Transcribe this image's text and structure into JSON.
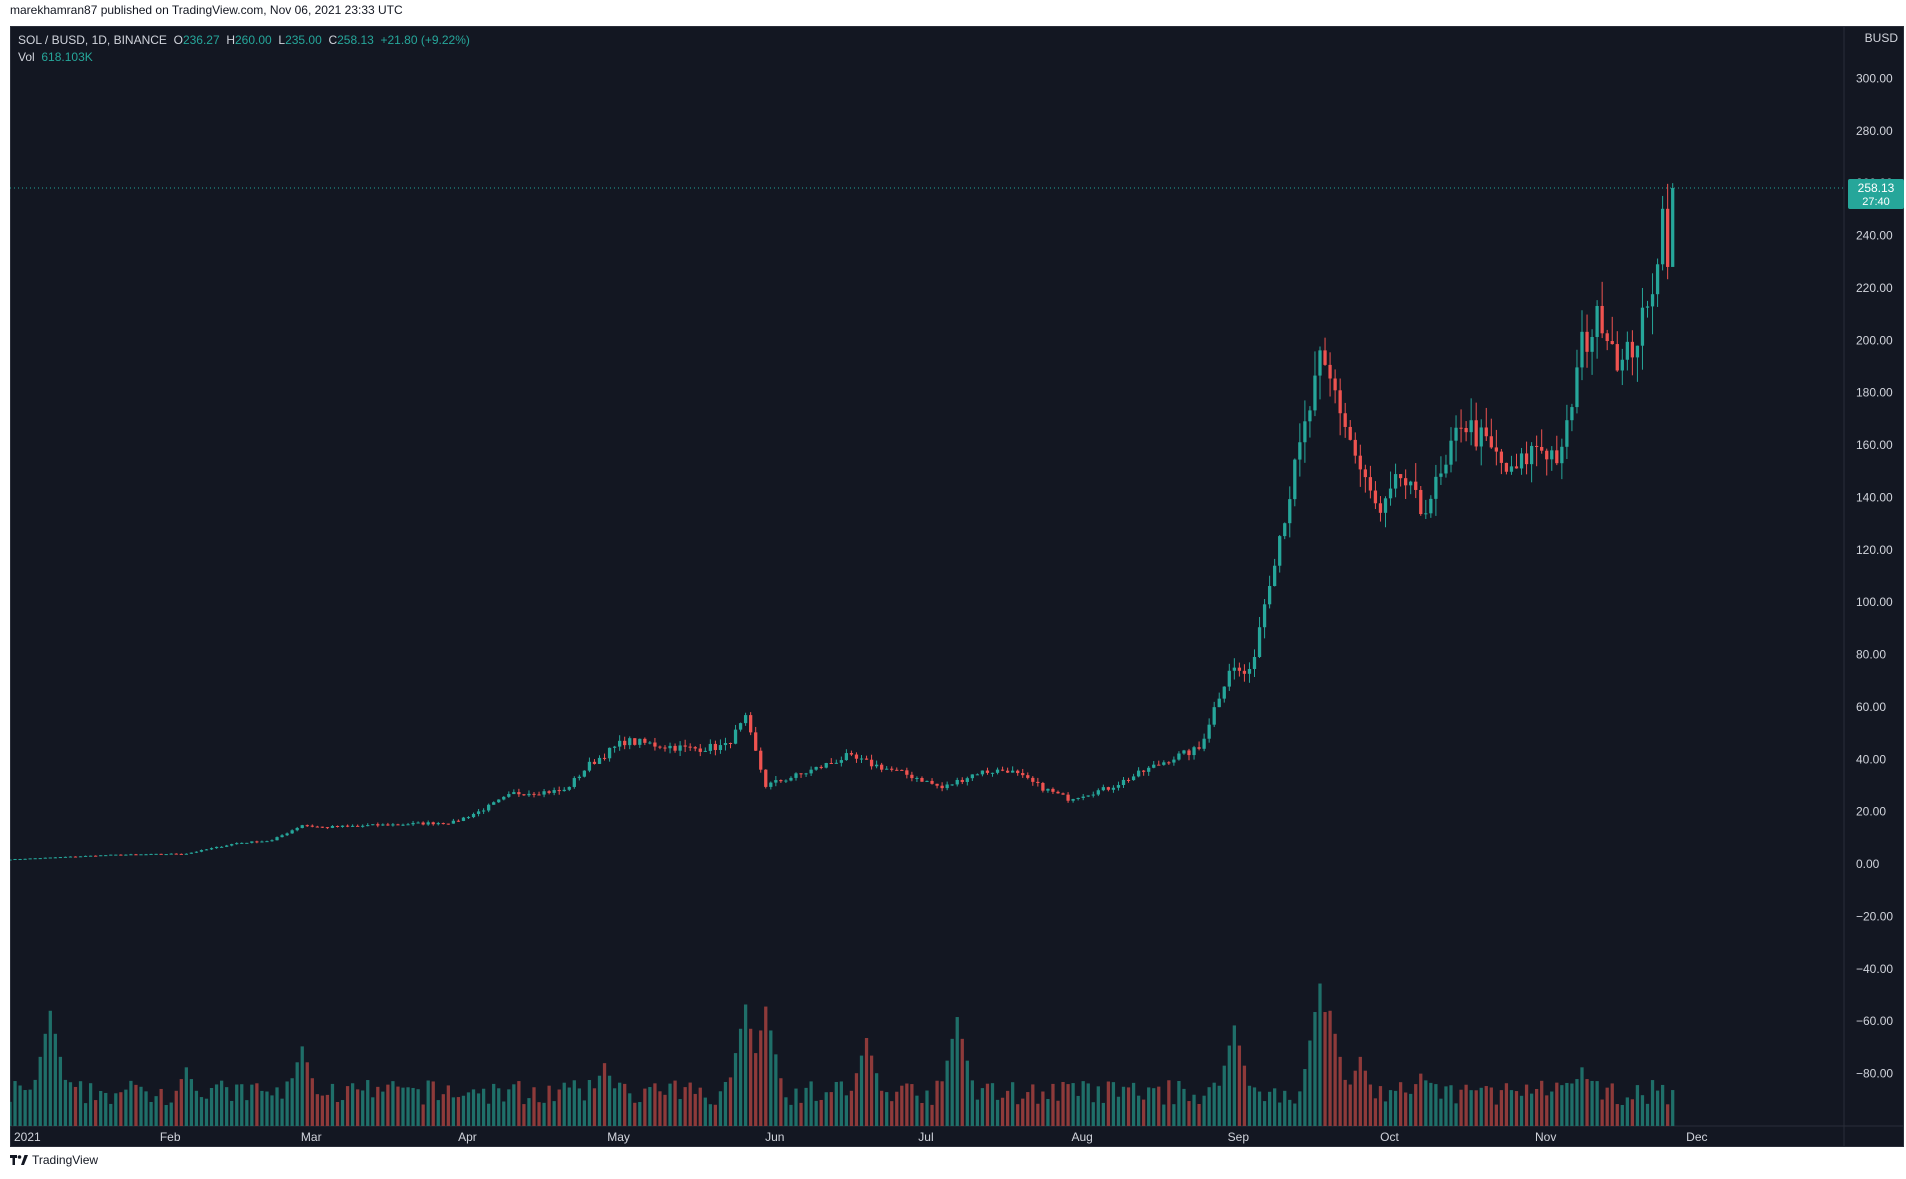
{
  "header": {
    "published": "marekhamran87 published on TradingView.com, Nov 06, 2021 23:33 UTC"
  },
  "legend": {
    "symbol": "SOL / BUSD, 1D, BINANCE",
    "o_label": "O",
    "o": "236.27",
    "h_label": "H",
    "h": "260.00",
    "l_label": "L",
    "l": "235.00",
    "c_label": "C",
    "c": "258.13",
    "change": "+21.80 (+9.22%)",
    "vol_label": "Vol",
    "vol": "618.103K"
  },
  "price_badge": {
    "price": "258.13",
    "countdown": "27:40"
  },
  "currency": "BUSD",
  "footer": {
    "brand": "TradingView"
  },
  "colors": {
    "up": "#26a69a",
    "down": "#ef5350",
    "up_vol": "#1f6f69",
    "down_vol": "#8e3a3a",
    "bg": "#131722",
    "text": "#d1d4dc"
  },
  "chart_data": {
    "type": "candlestick",
    "symbol": "SOL / BUSD",
    "interval": "1D",
    "exchange": "BINANCE",
    "ylim": [
      -100,
      320
    ],
    "y_ticks": [
      300,
      280,
      260,
      240,
      220,
      200,
      180,
      160,
      140,
      120,
      100,
      80,
      60,
      40,
      20,
      0,
      -20,
      -40,
      -60,
      -80
    ],
    "y_tick_labels": [
      "300.00",
      "280.00",
      "260.00",
      "240.00",
      "220.00",
      "200.00",
      "180.00",
      "160.00",
      "140.00",
      "120.00",
      "100.00",
      "80.00",
      "60.00",
      "40.00",
      "20.00",
      "0.00",
      "−20.00",
      "−40.00",
      "−60.00",
      "−80.00"
    ],
    "x_ticks": [
      "2021",
      "Feb",
      "Mar",
      "Apr",
      "May",
      "Jun",
      "Jul",
      "Aug",
      "Sep",
      "Oct",
      "Nov",
      "Dec"
    ],
    "x_tick_days": [
      0,
      31,
      59,
      90,
      120,
      151,
      181,
      212,
      243,
      273,
      304,
      334
    ],
    "x_range_days": [
      0,
      364
    ],
    "last_price": 258.13,
    "anchors": [
      [
        0,
        1.8
      ],
      [
        20,
        3.5
      ],
      [
        35,
        4.0
      ],
      [
        45,
        8.0
      ],
      [
        52,
        9.0
      ],
      [
        58,
        15.0
      ],
      [
        62,
        14.0
      ],
      [
        75,
        15.0
      ],
      [
        88,
        16.0
      ],
      [
        93,
        20.0
      ],
      [
        100,
        27.0
      ],
      [
        110,
        28.0
      ],
      [
        115,
        38.0
      ],
      [
        122,
        47.0
      ],
      [
        135,
        44.0
      ],
      [
        142,
        45.0
      ],
      [
        146,
        55.0
      ],
      [
        150,
        30.0
      ],
      [
        158,
        35.0
      ],
      [
        166,
        41.0
      ],
      [
        180,
        33.0
      ],
      [
        185,
        29.0
      ],
      [
        192,
        35.0
      ],
      [
        198,
        36.0
      ],
      [
        205,
        29.0
      ],
      [
        210,
        25.0
      ],
      [
        218,
        29.0
      ],
      [
        230,
        40.0
      ],
      [
        236,
        44.0
      ],
      [
        242,
        75.0
      ],
      [
        246,
        72.0
      ],
      [
        250,
        110.0
      ],
      [
        255,
        150.0
      ],
      [
        260,
        190.0
      ],
      [
        263,
        180.0
      ],
      [
        268,
        150.0
      ],
      [
        272,
        132.0
      ],
      [
        276,
        148.0
      ],
      [
        280,
        135.0
      ],
      [
        285,
        150.0
      ],
      [
        288,
        170.0
      ],
      [
        293,
        160.0
      ],
      [
        298,
        148.0
      ],
      [
        303,
        160.0
      ],
      [
        308,
        155.0
      ],
      [
        312,
        198.0
      ],
      [
        316,
        210.0
      ],
      [
        320,
        190.0
      ],
      [
        325,
        210.0
      ],
      [
        328,
        248.0
      ],
      [
        329,
        236.0
      ],
      [
        330,
        258.13
      ]
    ],
    "volume_spikes": [
      [
        8,
        0.55
      ],
      [
        35,
        0.28
      ],
      [
        58,
        0.38
      ],
      [
        118,
        0.3
      ],
      [
        146,
        0.58
      ],
      [
        150,
        0.57
      ],
      [
        170,
        0.42
      ],
      [
        188,
        0.52
      ],
      [
        243,
        0.48
      ],
      [
        260,
        0.68
      ],
      [
        262,
        0.55
      ],
      [
        268,
        0.33
      ],
      [
        280,
        0.25
      ],
      [
        312,
        0.28
      ]
    ]
  }
}
